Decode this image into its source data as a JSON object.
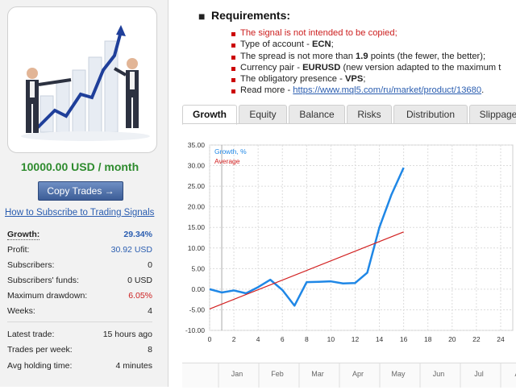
{
  "sidebar": {
    "price": "10000.00 USD / month",
    "copy_button": "Copy Trades →",
    "howto_link": "How to Subscribe to Trading Signals",
    "stats": [
      {
        "label": "Growth:",
        "value": "29.34%"
      },
      {
        "label": "Profit:",
        "value": "30.92 USD"
      },
      {
        "label": "Subscribers:",
        "value": "0"
      },
      {
        "label": "Subscribers' funds:",
        "value": "0 USD"
      },
      {
        "label": "Maximum drawdown:",
        "value": "6.05%"
      },
      {
        "label": "Weeks:",
        "value": "4"
      }
    ],
    "stats2": [
      {
        "label": "Latest trade:",
        "value": "15 hours ago"
      },
      {
        "label": "Trades per week:",
        "value": "8"
      },
      {
        "label": "Avg holding time:",
        "value": "4 minutes"
      }
    ]
  },
  "requirements": {
    "title": "Requirements:",
    "items": [
      {
        "plain": "The signal is not intended to be copied;",
        "bold": "",
        "after": ""
      },
      {
        "plain": "Type of account - ",
        "bold": "ECN",
        "after": ";"
      },
      {
        "plain": "The spread is not more than ",
        "bold": "1.9",
        "after": " points (the fewer, the better);"
      },
      {
        "plain": "Currency pair - ",
        "bold": "EURUSD",
        "after": " (new version adapted to the maximum t"
      },
      {
        "plain": "The obligatory presence - ",
        "bold": "VPS",
        "after": ";"
      },
      {
        "plain": "Read more - ",
        "bold": "",
        "after": "",
        "link": "https://www.mql5.com/ru/market/product/13680",
        "tail": "."
      }
    ]
  },
  "tabs": [
    "Growth",
    "Equity",
    "Balance",
    "Risks",
    "Distribution",
    "Slippage"
  ],
  "active_tab": "Growth",
  "timeline": {
    "months": [
      "Jan",
      "Feb",
      "Mar",
      "Apr",
      "May",
      "Jun",
      "Jul",
      "Au"
    ]
  },
  "colors": {
    "growth_line": "#1f87e6",
    "average_line": "#d22020",
    "price": "#2e8b2e",
    "link": "#2a5db0"
  },
  "chart_data": {
    "type": "line",
    "series": [
      {
        "name": "Growth, %",
        "x": [
          0,
          1,
          2,
          3,
          4,
          5,
          6,
          7,
          8,
          9,
          10,
          11,
          12,
          13,
          14,
          15,
          16
        ],
        "y": [
          0.0,
          -0.8,
          -0.3,
          -1.0,
          0.5,
          2.3,
          -0.2,
          -4.0,
          1.7,
          1.8,
          1.9,
          1.4,
          1.5,
          4.0,
          15.0,
          23.0,
          29.5
        ]
      },
      {
        "name": "Average",
        "x": [
          0,
          16
        ],
        "y": [
          -4.8,
          13.9
        ]
      }
    ],
    "xlim": [
      0,
      25
    ],
    "ylim": [
      -10,
      35
    ],
    "xticks": [
      "0",
      "2",
      "4",
      "6",
      "8",
      "10",
      "12",
      "14",
      "16",
      "18",
      "20",
      "22",
      "24"
    ],
    "yticks": [
      "35.00",
      "30.00",
      "25.00",
      "20.00",
      "15.00",
      "10.00",
      "5.00",
      "0.00",
      "-5.00",
      "-10.00"
    ],
    "legend": [
      "Growth, %",
      "Average"
    ],
    "grid": true
  }
}
